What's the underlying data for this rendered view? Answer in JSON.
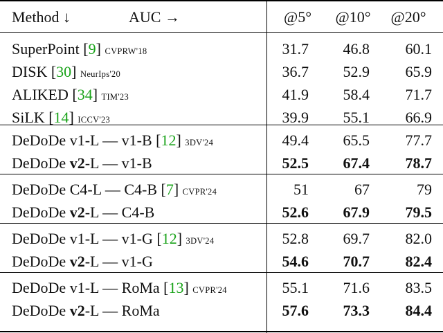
{
  "header": {
    "method": "Method ↓",
    "auc": "AUC →",
    "col1": "@5°",
    "col2": "@10°",
    "col3": "@20°"
  },
  "groups": [
    {
      "rows": [
        {
          "method": "SuperPoint",
          "cite": "9",
          "venue": "CVPRW'18",
          "v": [
            "31.7",
            "46.8",
            "60.1"
          ],
          "bold": false
        },
        {
          "method": "DISK",
          "cite": "30",
          "venue": "NeurIps'20",
          "v": [
            "36.7",
            "52.9",
            "65.9"
          ],
          "bold": false
        },
        {
          "method": "ALIKED",
          "cite": "34",
          "venue": "TIM'23",
          "v": [
            "41.9",
            "58.4",
            "71.7"
          ],
          "bold": false
        },
        {
          "method": "SiLK",
          "cite": "14",
          "venue": "ICCV'23",
          "v": [
            "39.9",
            "55.1",
            "66.9"
          ],
          "bold": false
        }
      ]
    },
    {
      "rows": [
        {
          "pre": "DeDoDe v1-L — v1-B",
          "cite": "12",
          "venue": "3DV'24",
          "v": [
            "49.4",
            "65.5",
            "77.7"
          ],
          "bold": false
        },
        {
          "pre": "DeDoDe ",
          "v2": "v2",
          "post": "-L — v1-B",
          "v": [
            "52.5",
            "67.4",
            "78.7"
          ],
          "bold": true
        }
      ]
    },
    {
      "rows": [
        {
          "pre": "DeDoDe C4-L — C4-B",
          "cite": "7",
          "venue": "CVPR'24",
          "v": [
            "51",
            "67",
            "79"
          ],
          "bold": false
        },
        {
          "pre": "DeDoDe ",
          "v2": "v2",
          "post": "-L — C4-B",
          "v": [
            "52.6",
            "67.9",
            "79.5"
          ],
          "bold": true
        }
      ]
    },
    {
      "rows": [
        {
          "pre": "DeDoDe v1-L — v1-G",
          "cite": "12",
          "venue": "3DV'24",
          "v": [
            "52.8",
            "69.7",
            "82.0"
          ],
          "bold": false
        },
        {
          "pre": "DeDoDe ",
          "v2": "v2",
          "post": "-L — v1-G",
          "v": [
            "54.6",
            "70.7",
            "82.4"
          ],
          "bold": true
        }
      ]
    },
    {
      "rows": [
        {
          "pre": "DeDoDe v1-L — RoMa",
          "cite": "13",
          "venue": "CVPR'24",
          "v": [
            "55.1",
            "71.6",
            "83.5"
          ],
          "bold": false
        },
        {
          "pre": "DeDoDe ",
          "v2": "v2",
          "post": "-L — RoMa",
          "v": [
            "57.6",
            "73.3",
            "84.4"
          ],
          "bold": true
        }
      ]
    }
  ]
}
